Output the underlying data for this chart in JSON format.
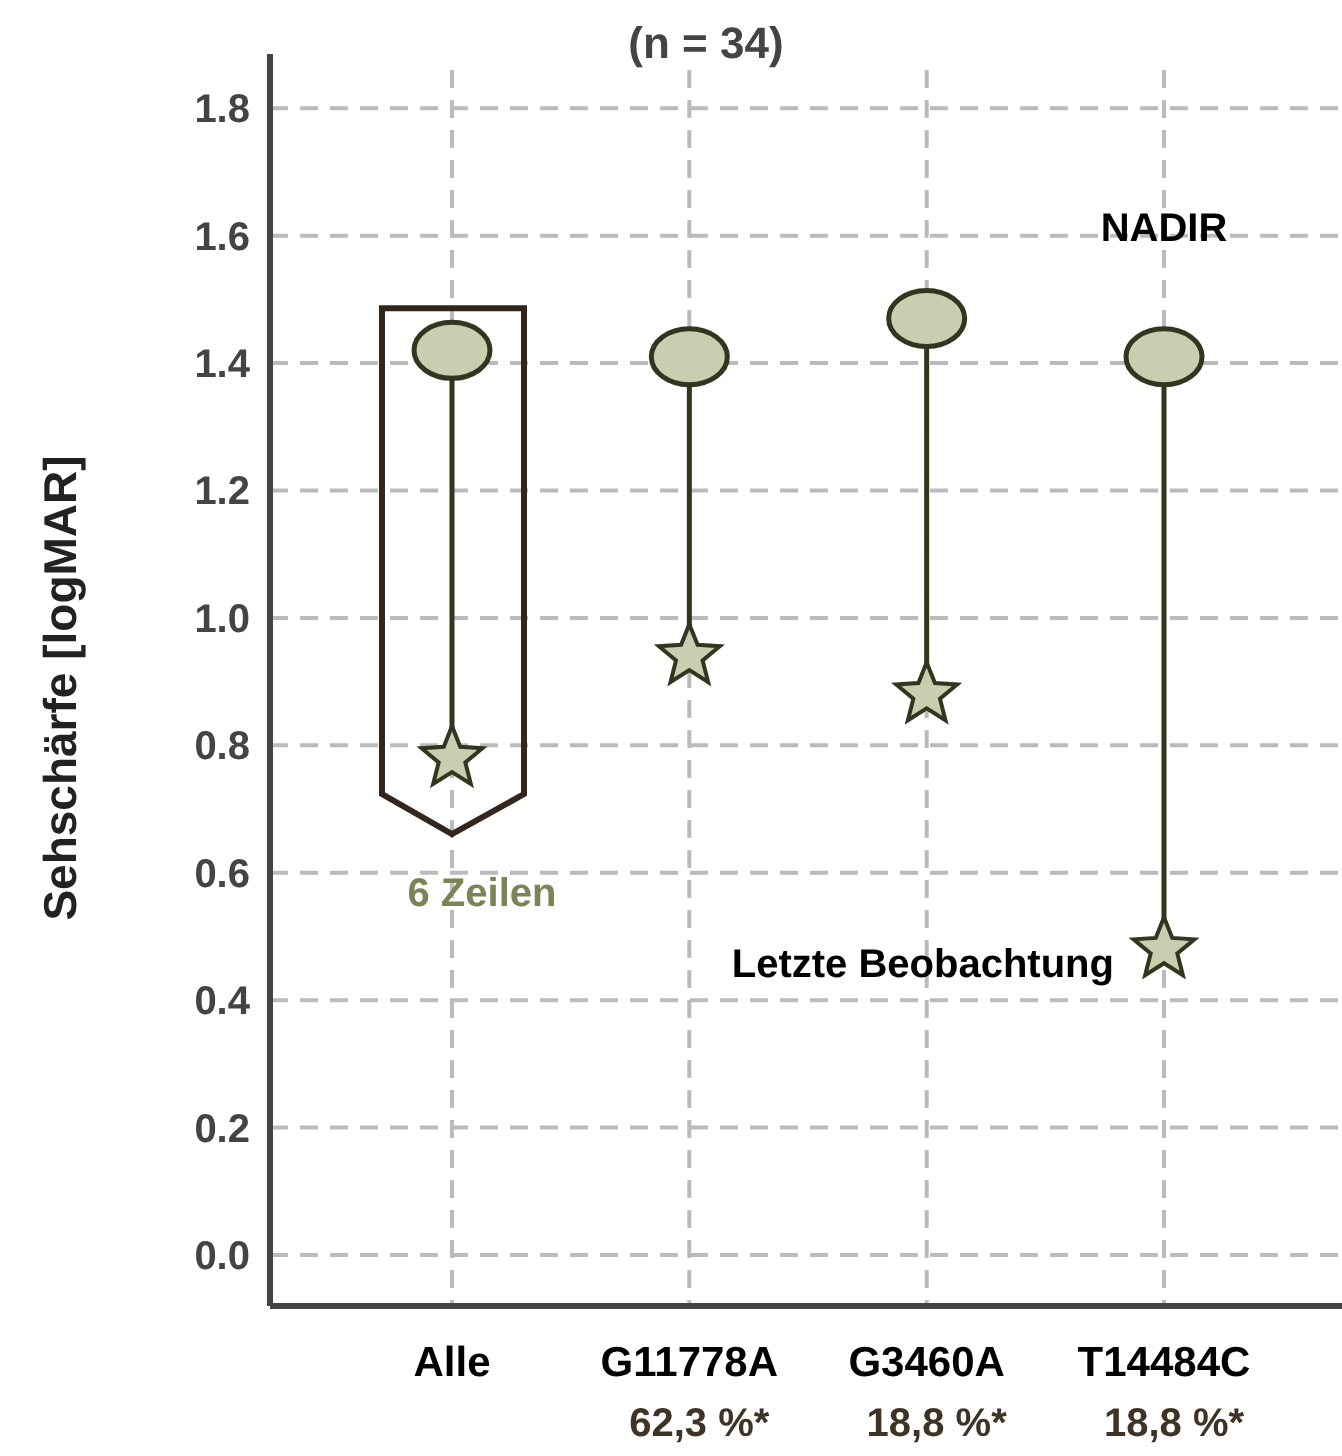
{
  "chart_data": {
    "type": "scatter",
    "title": "(n = 34)",
    "ylabel": "Sehschärfe [logMAR]",
    "categories": [
      "Alle",
      "G11778A",
      "G3460A",
      "T14484C"
    ],
    "series": [
      {
        "name": "NADIR",
        "color": "#c9ceb0",
        "marker": "circle",
        "values": [
          1.42,
          1.41,
          1.47,
          1.41
        ]
      },
      {
        "name": "Letzte Beobachtung",
        "color": "#c9ceb0",
        "marker": "star",
        "values": [
          0.78,
          0.94,
          0.88,
          0.48
        ]
      }
    ],
    "ylim": [
      -0.08,
      1.86
    ],
    "yticks": [
      {
        "value": 0,
        "label": "0.0"
      },
      0.2,
      0.4,
      0.6,
      0.8,
      {
        "value": 1,
        "label": "1.0"
      },
      1.2,
      1.4,
      1.6,
      1.8
    ],
    "grid": true,
    "legend": false,
    "annotations": [
      "6 Zeilen",
      "62,3 %*",
      "18,8 %*",
      "18,8 %*"
    ]
  }
}
